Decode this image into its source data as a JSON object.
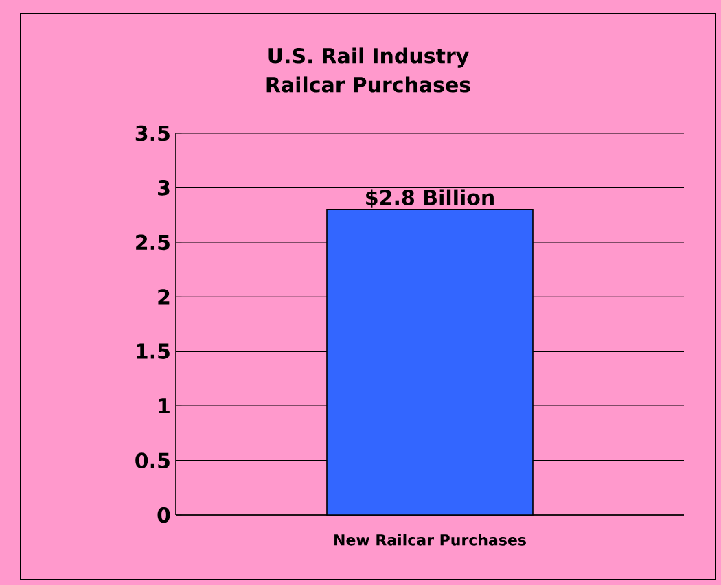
{
  "chart_data": {
    "type": "bar",
    "title": "U.S. Rail Industry Railcar Purchases",
    "categories": [
      "New Railcar Purchases"
    ],
    "values": [
      2.8
    ],
    "value_labels": [
      "$2.8 Billion"
    ],
    "color": "#3366ff",
    "ylim": [
      0,
      3.5
    ],
    "yticks": [
      0,
      0.5,
      1,
      1.5,
      2,
      2.5,
      3,
      3.5
    ],
    "grid": "y"
  }
}
